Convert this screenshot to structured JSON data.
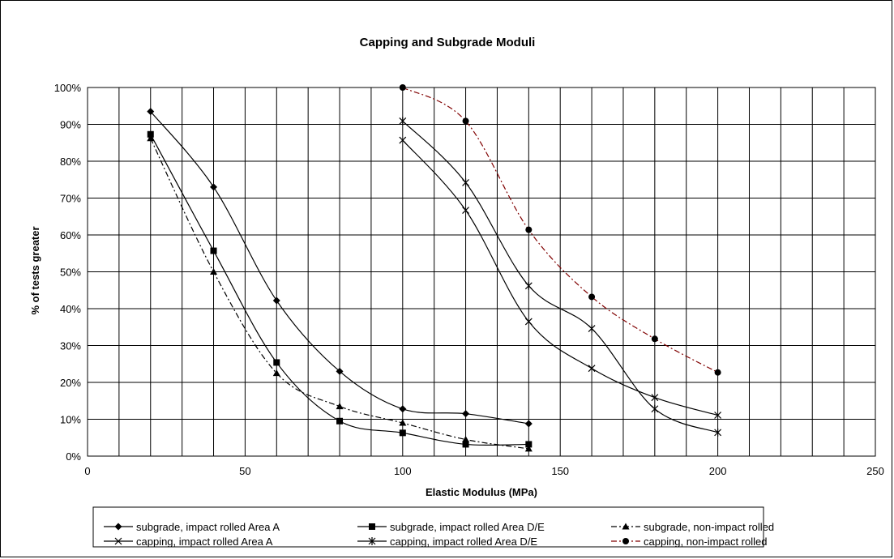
{
  "chart_data": {
    "type": "line",
    "title": "Capping and Subgrade Moduli",
    "xlabel": "Elastic Modulus (MPa)",
    "ylabel": "% of tests greater",
    "xlim": [
      0,
      250
    ],
    "ylim": [
      0,
      1
    ],
    "x_ticks": [
      "0",
      "50",
      "100",
      "150",
      "200",
      "250"
    ],
    "y_ticks": [
      "0%",
      "10%",
      "20%",
      "30%",
      "40%",
      "50%",
      "60%",
      "70%",
      "80%",
      "90%",
      "100%"
    ],
    "x_tick_values": [
      0,
      50,
      100,
      150,
      200,
      250
    ],
    "y_tick_values": [
      0,
      0.1,
      0.2,
      0.3,
      0.4,
      0.5,
      0.6,
      0.7,
      0.8,
      0.9,
      1.0
    ],
    "x_minor_step": 10,
    "grid": true,
    "legend_position": "bottom",
    "series": [
      {
        "name": "subgrade, impact rolled Area A",
        "marker": "diamond",
        "dash": "solid",
        "color": "#000000",
        "x": [
          20,
          40,
          60,
          80,
          100,
          120,
          140
        ],
        "y": [
          0.935,
          0.73,
          0.422,
          0.23,
          0.128,
          0.115,
          0.088
        ]
      },
      {
        "name": "subgrade, impact rolled Area D/E",
        "marker": "square",
        "dash": "solid",
        "color": "#000000",
        "x": [
          20,
          40,
          60,
          80,
          100,
          120,
          140
        ],
        "y": [
          0.873,
          0.557,
          0.254,
          0.095,
          0.063,
          0.032,
          0.032
        ]
      },
      {
        "name": "subgrade, non-impact rolled",
        "marker": "triangle",
        "dash": "dashdot",
        "color": "#000000",
        "x": [
          20,
          40,
          60,
          80,
          100,
          120,
          140
        ],
        "y": [
          0.862,
          0.5,
          0.225,
          0.135,
          0.09,
          0.045,
          0.02
        ]
      },
      {
        "name": "capping, impact rolled Area A",
        "marker": "x",
        "dash": "solid",
        "color": "#000000",
        "x": [
          100,
          120,
          140,
          160,
          180,
          200
        ],
        "y": [
          0.857,
          0.667,
          0.365,
          0.238,
          0.159,
          0.111
        ]
      },
      {
        "name": "capping, impact rolled Area D/E",
        "marker": "star",
        "dash": "solid",
        "color": "#000000",
        "x": [
          100,
          120,
          140,
          160,
          180,
          200
        ],
        "y": [
          0.909,
          0.742,
          0.462,
          0.346,
          0.128,
          0.064
        ]
      },
      {
        "name": "capping, non-impact rolled",
        "marker": "circle",
        "dash": "dashdot",
        "color": "#800000",
        "x": [
          100,
          120,
          140,
          160,
          180,
          200
        ],
        "y": [
          1.0,
          0.909,
          0.614,
          0.432,
          0.318,
          0.227
        ]
      }
    ]
  }
}
